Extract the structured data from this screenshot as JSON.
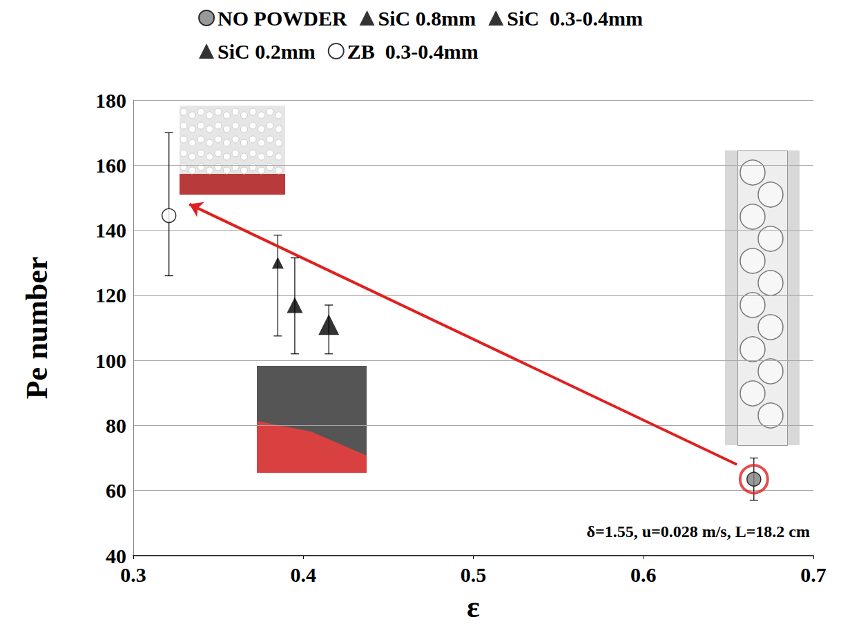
{
  "chart_data": {
    "type": "scatter",
    "x_label": "ε",
    "y_label": "Pe number",
    "xlim": [
      0.3,
      0.7
    ],
    "xticks": [
      0.3,
      0.4,
      0.5,
      0.6,
      0.7
    ],
    "ylim": [
      40,
      180
    ],
    "yticks": [
      40,
      60,
      80,
      100,
      120,
      140,
      160,
      180
    ],
    "grid": true,
    "legend": "top",
    "series": [
      {
        "name": "NO POWDER",
        "marker": "circle",
        "color": "#808080",
        "x": [
          0.665
        ],
        "values": [
          63.5
        ],
        "error_low": [
          57
        ],
        "error_high": [
          70
        ]
      },
      {
        "name": "SiC 0.8mm",
        "marker": "triangle",
        "color": "#000000",
        "x": [
          0.415
        ],
        "values": [
          111
        ],
        "error_low": [
          102
        ],
        "error_high": [
          117
        ]
      },
      {
        "name": "SiC  0.3-0.4mm",
        "marker": "triangle",
        "color": "#000000",
        "x": [
          0.395
        ],
        "values": [
          117
        ],
        "error_low": [
          102
        ],
        "error_high": [
          131.5
        ]
      },
      {
        "name": "SiC 0.2mm",
        "marker": "triangle",
        "color": "#000000",
        "x": [
          0.385
        ],
        "values": [
          130
        ],
        "error_low": [
          107.5
        ],
        "error_high": [
          138.5
        ]
      },
      {
        "name": "ZB  0.3-0.4mm",
        "marker": "open_circle",
        "color": "#ffffff",
        "x": [
          0.321
        ],
        "values": [
          144.5
        ],
        "error_low": [
          126
        ],
        "error_high": [
          170
        ]
      }
    ],
    "annotations": [
      {
        "type": "text",
        "text": "δ=1.55, u=0.028 m/s, L=18.2 cm"
      },
      {
        "type": "arrow",
        "color": "#e02020",
        "x": [
          0.655,
          0.333
        ],
        "y": [
          68,
          148
        ]
      },
      {
        "type": "circle",
        "color": "#e02020",
        "series": "NO POWDER"
      }
    ]
  }
}
